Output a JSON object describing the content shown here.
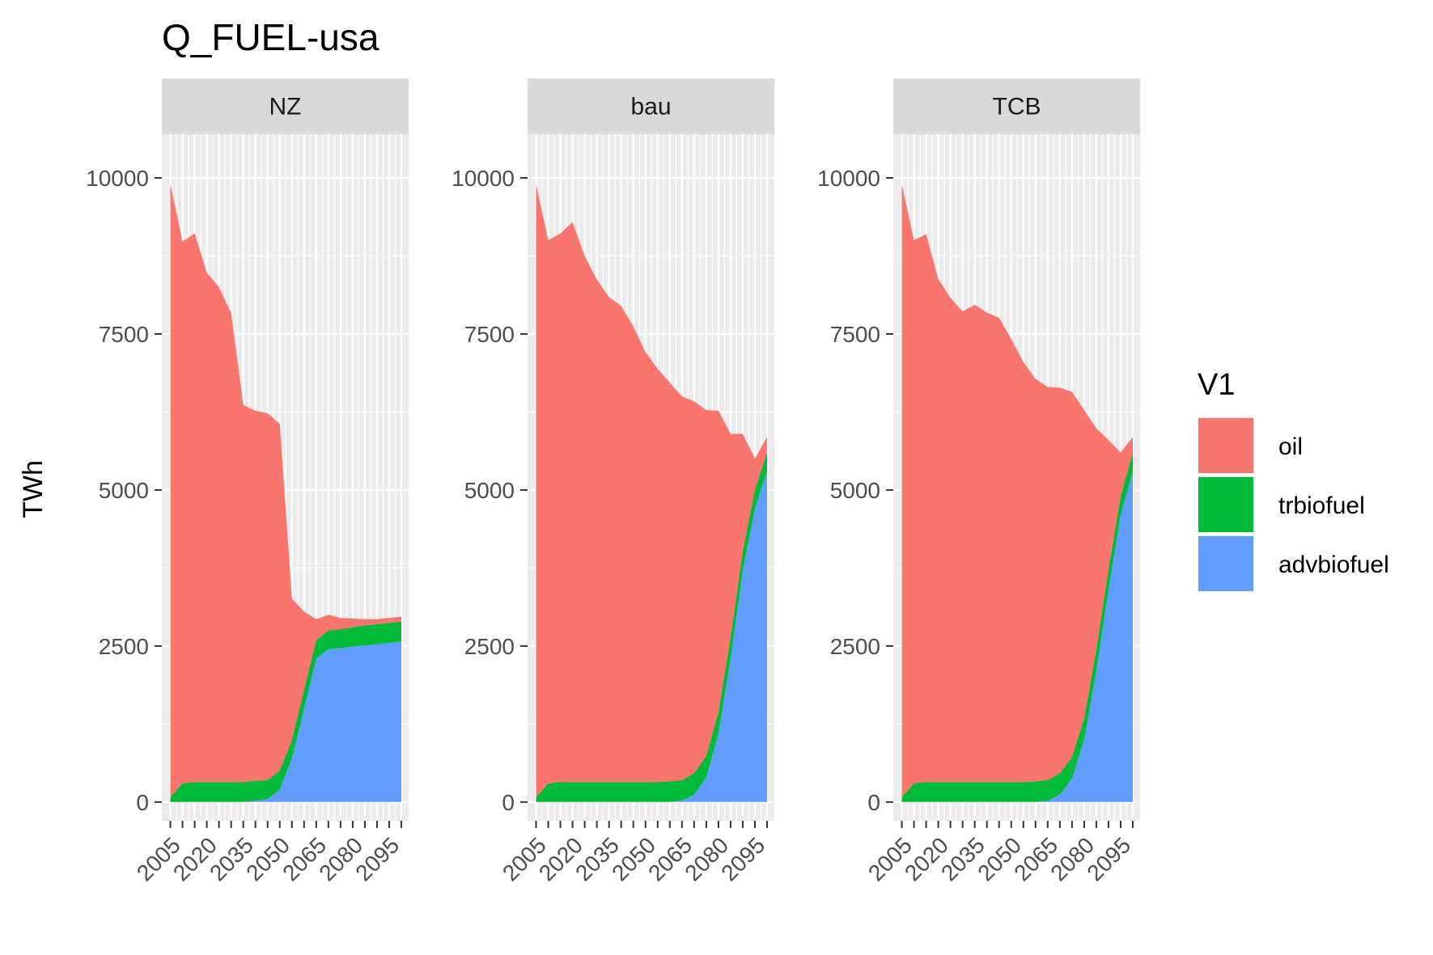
{
  "chart_data": {
    "type": "area",
    "stacked": true,
    "title": "Q_FUEL-usa",
    "xlabel": "",
    "ylabel": "TWh",
    "ylim": [
      -300,
      10700
    ],
    "xlim": [
      2001.5,
      2103
    ],
    "y_ticks": [
      0,
      2500,
      5000,
      7500,
      10000
    ],
    "y_tick_labels": [
      "0",
      "2500",
      "5000",
      "7500",
      "10000"
    ],
    "x_ticks": [
      2005,
      2020,
      2035,
      2050,
      2065,
      2080,
      2095
    ],
    "x_tick_labels": [
      "2005",
      "2020",
      "2035",
      "2050",
      "2065",
      "2080",
      "2095"
    ],
    "grid": true,
    "legend": {
      "title": "V1",
      "position": "right",
      "entries": [
        {
          "label": "oil",
          "color": "#F8766D"
        },
        {
          "label": "trbiofuel",
          "color": "#00BA38"
        },
        {
          "label": "advbiofuel",
          "color": "#619CFF"
        }
      ]
    },
    "stack_order_bottom_to_top": [
      "advbiofuel",
      "trbiofuel",
      "oil"
    ],
    "x": [
      2005,
      2010,
      2015,
      2020,
      2025,
      2030,
      2035,
      2040,
      2045,
      2050,
      2055,
      2060,
      2065,
      2070,
      2075,
      2080,
      2085,
      2090,
      2095,
      2100
    ],
    "panels": [
      {
        "name": "NZ",
        "series": [
          {
            "name": "advbiofuel",
            "values": [
              0,
              0,
              0,
              0,
              0,
              0,
              0,
              20,
              50,
              200,
              700,
              1500,
              2300,
              2450,
              2470,
              2490,
              2510,
              2530,
              2550,
              2570
            ]
          },
          {
            "name": "trbiofuel",
            "values": [
              80,
              300,
              320,
              320,
              320,
              320,
              320,
              320,
              300,
              300,
              300,
              300,
              290,
              300,
              300,
              310,
              320,
              320,
              320,
              320
            ]
          },
          {
            "name": "oil",
            "values": [
              9820,
              8680,
              8790,
              8160,
              7930,
              7520,
              6040,
              5930,
              5880,
              5560,
              2260,
              1250,
              340,
              250,
              180,
              140,
              100,
              80,
              80,
              80
            ]
          }
        ]
      },
      {
        "name": "bau",
        "series": [
          {
            "name": "advbiofuel",
            "values": [
              0,
              0,
              0,
              0,
              0,
              0,
              0,
              0,
              0,
              0,
              0,
              0,
              20,
              120,
              400,
              1100,
              2300,
              3700,
              4700,
              5300
            ]
          },
          {
            "name": "trbiofuel",
            "values": [
              80,
              300,
              320,
              320,
              320,
              320,
              320,
              320,
              320,
              320,
              320,
              330,
              330,
              340,
              340,
              340,
              340,
              320,
              300,
              300
            ]
          },
          {
            "name": "oil",
            "values": [
              9820,
              8700,
              8790,
              8970,
              8430,
              8050,
              7770,
              7630,
              7300,
              6890,
              6620,
              6390,
              6150,
              5960,
              5540,
              4830,
              3260,
              1880,
              500,
              250
            ]
          }
        ]
      },
      {
        "name": "TCB",
        "series": [
          {
            "name": "advbiofuel",
            "values": [
              0,
              0,
              0,
              0,
              0,
              0,
              0,
              0,
              0,
              0,
              0,
              0,
              20,
              120,
              380,
              1000,
              2100,
              3400,
              4600,
              5300
            ]
          },
          {
            "name": "trbiofuel",
            "values": [
              80,
              300,
              320,
              320,
              320,
              320,
              320,
              320,
              320,
              320,
              320,
              330,
              330,
              340,
              340,
              340,
              340,
              320,
              300,
              300
            ]
          },
          {
            "name": "oil",
            "values": [
              9820,
              8700,
              8780,
              8060,
              7760,
              7540,
              7650,
              7520,
              7440,
              7100,
              6730,
              6450,
              6300,
              6180,
              5850,
              4940,
              3550,
              2080,
              700,
              250
            ]
          }
        ]
      }
    ]
  }
}
